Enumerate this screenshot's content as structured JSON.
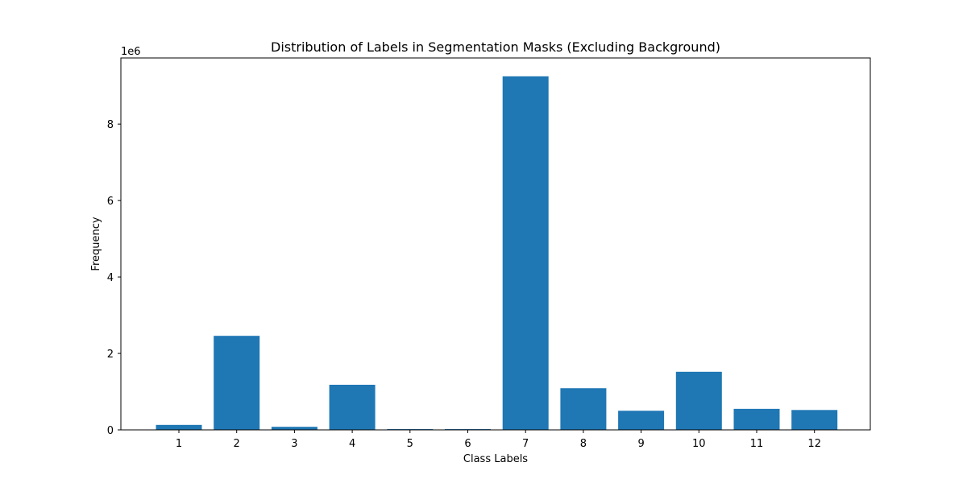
{
  "chart_data": {
    "type": "bar",
    "title": "Distribution of Labels in Segmentation Masks (Excluding Background)",
    "xlabel": "Class Labels",
    "ylabel": "Frequency",
    "y_scale_label": "1e6",
    "categories": [
      "1",
      "2",
      "3",
      "4",
      "5",
      "6",
      "7",
      "8",
      "9",
      "10",
      "11",
      "12"
    ],
    "values": [
      130000,
      2460000,
      80000,
      1180000,
      20000,
      20000,
      9250000,
      1090000,
      500000,
      1520000,
      550000,
      520000
    ],
    "ylim": [
      0,
      9730000
    ],
    "y_ticks": [
      0,
      2000000,
      4000000,
      6000000,
      8000000
    ],
    "y_tick_labels": [
      "0",
      "2",
      "4",
      "6",
      "8"
    ],
    "grid": false,
    "bar_color": "#1f77b4"
  }
}
